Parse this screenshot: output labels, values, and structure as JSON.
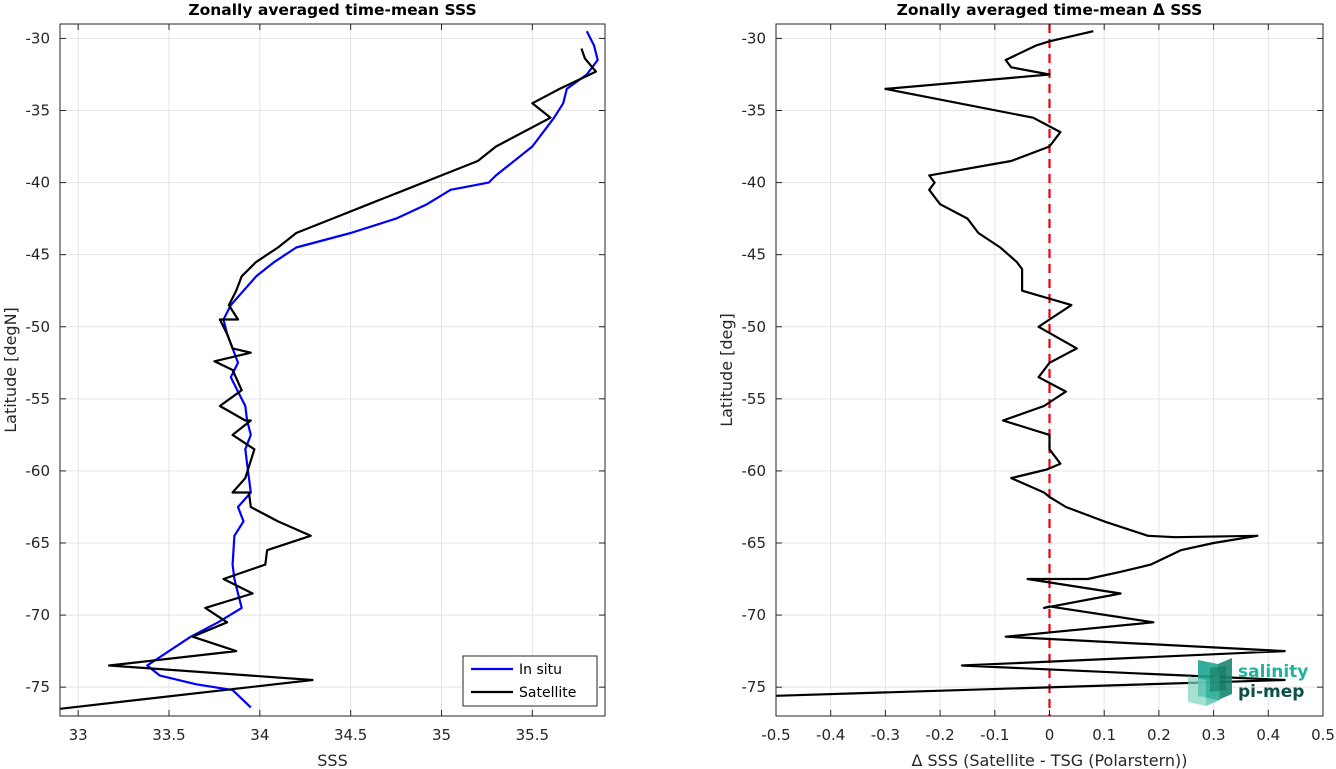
{
  "chart_data": [
    {
      "type": "line",
      "title": "Zonally averaged time-mean SSS",
      "xlabel": "SSS",
      "ylabel": "Latitude [degN]",
      "xlim": [
        32.9,
        35.9
      ],
      "ylim": [
        -77,
        -29
      ],
      "xticks": [
        33,
        33.5,
        34,
        34.5,
        35,
        35.5
      ],
      "yticks": [
        -30,
        -35,
        -40,
        -45,
        -50,
        -55,
        -60,
        -65,
        -70,
        -75
      ],
      "grid": true,
      "legend_position": "bottom-right",
      "series": [
        {
          "name": "In situ",
          "color": "#0000ff",
          "x": [
            35.8,
            35.84,
            35.86,
            35.8,
            35.69,
            35.67,
            35.62,
            35.5,
            35.3,
            35.26,
            35.05,
            34.92,
            34.75,
            34.5,
            34.2,
            34.08,
            33.98,
            33.91,
            33.84,
            33.8,
            33.82,
            33.85,
            33.88,
            33.84,
            33.88,
            33.92,
            33.93,
            33.95,
            33.92,
            33.93,
            33.95,
            33.88,
            33.91,
            33.86,
            33.85,
            33.86,
            33.88,
            33.9,
            33.77,
            33.62,
            33.5,
            33.38,
            33.45,
            33.65,
            33.85,
            33.95
          ],
          "y": [
            -29.5,
            -30.5,
            -31.5,
            -32.5,
            -33.5,
            -34.5,
            -35.5,
            -37.5,
            -39.5,
            -40,
            -40.5,
            -41.5,
            -42.5,
            -43.5,
            -44.5,
            -45.5,
            -46.5,
            -47.5,
            -48.5,
            -49.5,
            -50.5,
            -51.5,
            -52.5,
            -53.5,
            -54.5,
            -55.5,
            -56.5,
            -57.5,
            -58.5,
            -59.5,
            -61.5,
            -62.5,
            -63.5,
            -64.5,
            -66.5,
            -67.5,
            -68.5,
            -69.5,
            -70.5,
            -71.5,
            -72.5,
            -73.5,
            -74.2,
            -74.8,
            -75.2,
            -76.4
          ]
        },
        {
          "name": "Satellite",
          "color": "#000000",
          "x": [
            35.77,
            35.79,
            35.85,
            35.65,
            35.5,
            35.6,
            35.3,
            35.2,
            35.0,
            34.8,
            34.6,
            34.4,
            34.2,
            34.1,
            33.98,
            33.9,
            33.87,
            33.83,
            33.88,
            33.78,
            33.82,
            33.85,
            33.95,
            33.75,
            33.85,
            33.9,
            33.78,
            33.92,
            33.95,
            33.85,
            33.97,
            33.92,
            33.85,
            33.94,
            33.95,
            34.1,
            34.28,
            34.04,
            34.03,
            33.8,
            33.96,
            33.7,
            33.82,
            33.63,
            33.87,
            33.17,
            34.29,
            32.9
          ],
          "y": [
            -30.7,
            -31.4,
            -32.3,
            -33.5,
            -34.5,
            -35.5,
            -37.5,
            -38.5,
            -39.5,
            -40.5,
            -41.5,
            -42.5,
            -43.5,
            -44.5,
            -45.5,
            -46.5,
            -47.5,
            -48.5,
            -49.5,
            -49.5,
            -50.5,
            -51.5,
            -51.8,
            -52.4,
            -53.0,
            -54.4,
            -55.5,
            -56.5,
            -56.5,
            -57.5,
            -58.5,
            -60.5,
            -61.5,
            -61.5,
            -62.5,
            -63.5,
            -64.5,
            -65.5,
            -66.5,
            -67.5,
            -68.5,
            -69.5,
            -70.5,
            -71.5,
            -72.5,
            -73.5,
            -74.5,
            -76.5
          ]
        }
      ]
    },
    {
      "type": "line",
      "title": "Zonally averaged time-mean Δ SSS",
      "xlabel": "Δ SSS (Satellite - TSG (Polarstern))",
      "ylabel": "Latitude [deg]",
      "xlim": [
        -0.5,
        0.5
      ],
      "ylim": [
        -77,
        -29
      ],
      "xticks": [
        -0.5,
        -0.4,
        -0.3,
        -0.2,
        -0.1,
        0,
        0.1,
        0.2,
        0.3,
        0.4,
        0.5
      ],
      "yticks": [
        -30,
        -35,
        -40,
        -45,
        -50,
        -55,
        -60,
        -65,
        -70,
        -75
      ],
      "grid": true,
      "reference_line": {
        "x": 0,
        "color": "#e8000b",
        "style": "dashed"
      },
      "series": [
        {
          "color": "#000000",
          "x": [
            0.08,
            0.0,
            -0.025,
            -0.08,
            -0.07,
            0.0,
            -0.3,
            -0.03,
            0.02,
            0.0,
            -0.07,
            -0.22,
            -0.21,
            -0.22,
            -0.21,
            -0.2,
            -0.15,
            -0.13,
            -0.09,
            -0.06,
            -0.05,
            -0.05,
            -0.05,
            0.04,
            0.0,
            -0.02,
            0.05,
            0.0,
            -0.02,
            0.03,
            -0.01,
            -0.085,
            0.0,
            0.0,
            0.02,
            -0.005,
            -0.07,
            -0.01,
            0.0,
            0.03,
            0.1,
            0.18,
            0.23,
            0.38,
            0.3,
            0.24,
            0.185,
            0.13,
            0.07,
            -0.04,
            0.13,
            -0.01,
            0.0,
            0.19,
            -0.08,
            0.43,
            -0.16,
            0.43,
            -0.5
          ],
          "y": [
            -29.5,
            -30.2,
            -30.5,
            -31.5,
            -32.0,
            -32.5,
            -33.5,
            -35.5,
            -36.5,
            -37.5,
            -38.5,
            -39.5,
            -40.0,
            -40.5,
            -41.0,
            -41.5,
            -42.5,
            -43.5,
            -44.5,
            -45.5,
            -46.0,
            -46.5,
            -47.5,
            -48.5,
            -49.5,
            -50.0,
            -51.5,
            -52.5,
            -53.5,
            -54.5,
            -55.5,
            -56.5,
            -57.5,
            -58.5,
            -59.5,
            -59.9,
            -60.5,
            -61.5,
            -61.8,
            -62.5,
            -63.5,
            -64.5,
            -64.6,
            -64.5,
            -65.0,
            -65.5,
            -66.5,
            -67.0,
            -67.5,
            -67.5,
            -68.5,
            -69.5,
            -69.4,
            -70.5,
            -71.5,
            -72.5,
            -73.5,
            -74.5,
            -75.6
          ]
        }
      ]
    }
  ],
  "logo": {
    "line1": "salinity",
    "line2": "pi-mep"
  }
}
